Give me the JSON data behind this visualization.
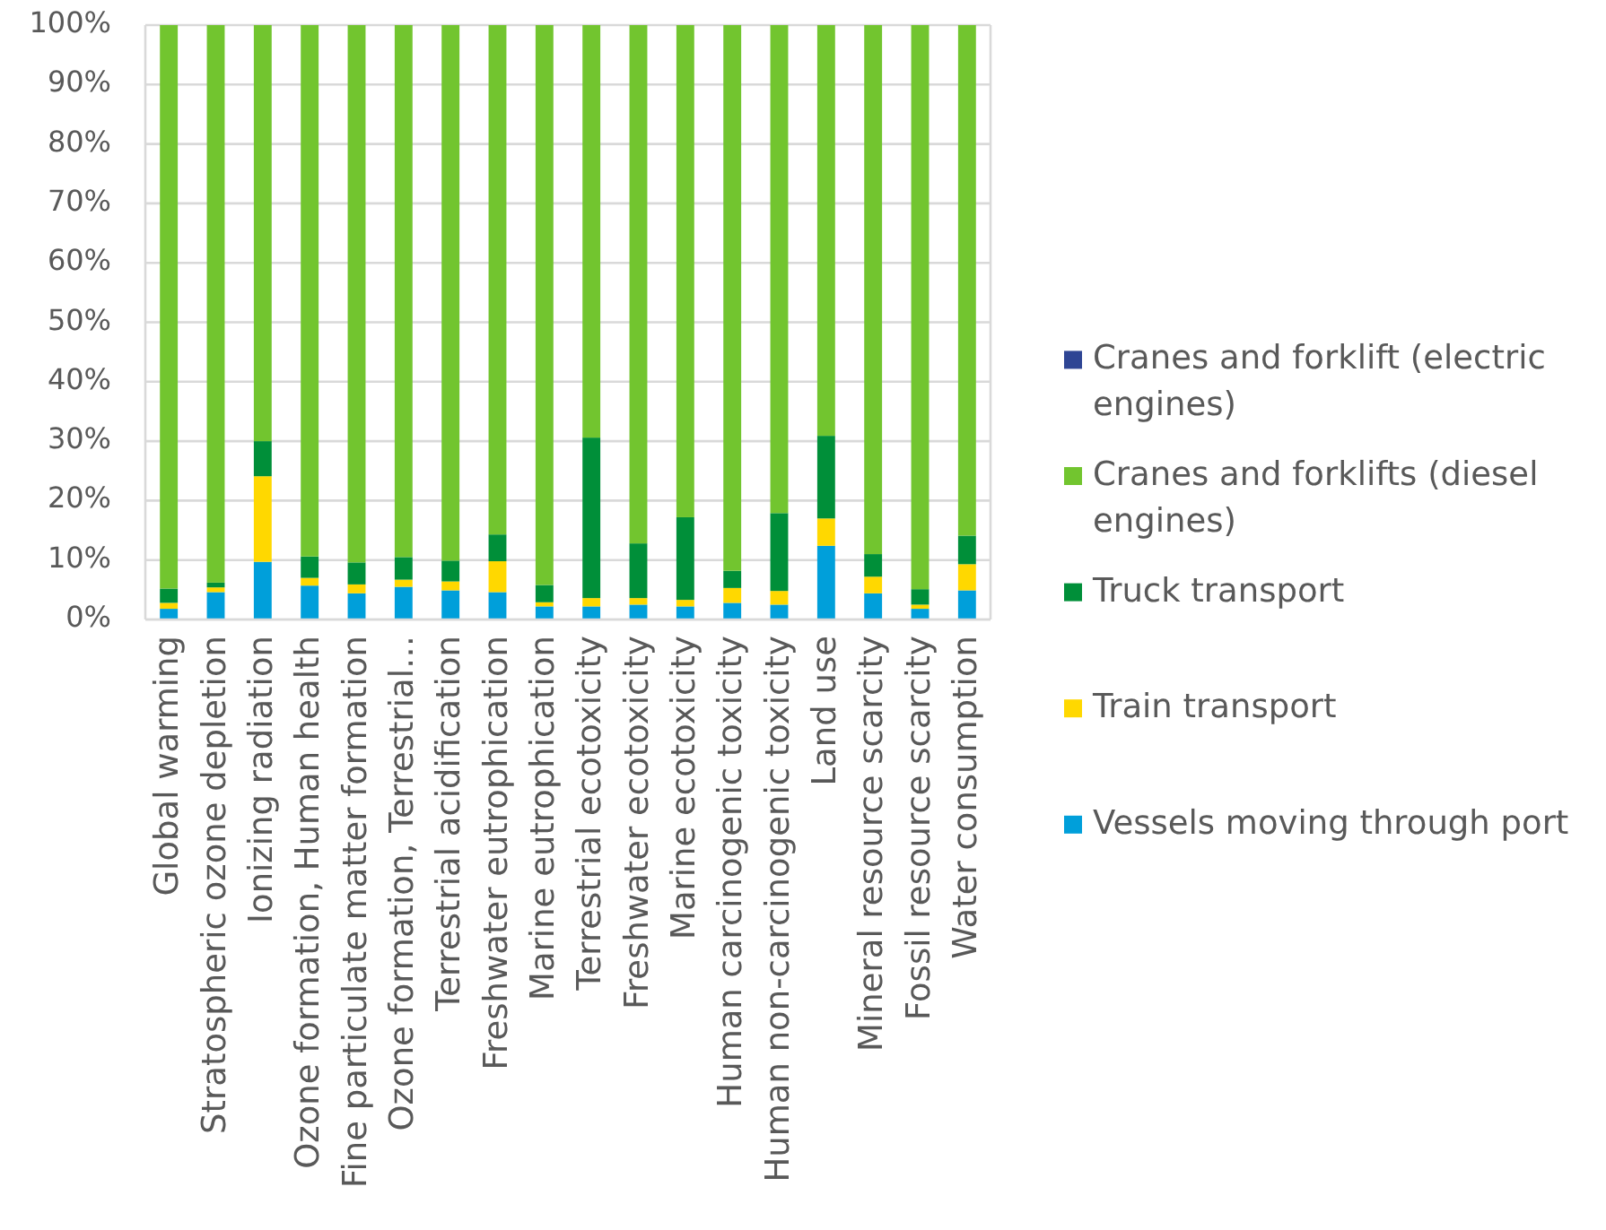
{
  "chart_data": {
    "type": "bar",
    "stacked": true,
    "categories": [
      "Global warming",
      "Stratospheric ozone depletion",
      "Ionizing radiation",
      "Ozone formation, Human health",
      "Fine particulate matter formation",
      "Ozone formation, Terrestrial…",
      "Terrestrial acidification",
      "Freshwater eutrophication",
      "Marine eutrophication",
      "Terrestrial ecotoxicity",
      "Freshwater ecotoxicity",
      "Marine ecotoxicity",
      "Human carcinogenic toxicity",
      "Human non-carcinogenic toxicity",
      "Land use",
      "Mineral resource scarcity",
      "Fossil resource scarcity",
      "Water consumption"
    ],
    "series": [
      {
        "name": "Vessels moving through port",
        "color": "#009fda",
        "values": [
          1.8,
          4.6,
          9.7,
          5.7,
          4.4,
          5.5,
          4.9,
          4.6,
          2.2,
          2.2,
          2.5,
          2.2,
          2.8,
          2.5,
          12.4,
          4.4,
          1.8,
          4.9
        ]
      },
      {
        "name": "Train transport",
        "color": "#ffd800",
        "values": [
          1.0,
          0.8,
          14.4,
          1.3,
          1.5,
          1.2,
          1.5,
          5.2,
          0.7,
          1.4,
          1.1,
          1.1,
          2.5,
          2.3,
          4.6,
          2.8,
          0.7,
          4.4
        ]
      },
      {
        "name": "Truck transport",
        "color": "#008f39",
        "values": [
          2.4,
          0.8,
          5.9,
          3.6,
          3.7,
          3.8,
          3.5,
          4.5,
          2.9,
          27.0,
          9.2,
          13.9,
          2.9,
          13.1,
          13.9,
          3.8,
          2.6,
          4.8
        ]
      },
      {
        "name": "Cranes and forklifts (diesel engines)",
        "color": "#72c52f",
        "values": [
          94.8,
          93.8,
          70.0,
          89.4,
          90.4,
          89.5,
          90.1,
          85.7,
          94.2,
          69.4,
          87.2,
          82.8,
          91.8,
          82.1,
          69.1,
          89.0,
          94.9,
          85.9
        ]
      },
      {
        "name": "Cranes and forklift (electric engines)",
        "color": "#2e4594",
        "values": [
          0,
          0,
          0,
          0,
          0,
          0,
          0,
          0,
          0,
          0,
          0,
          0,
          0,
          0,
          0,
          0,
          0,
          0
        ]
      }
    ],
    "ylim": [
      0,
      100
    ],
    "yticks": [
      {
        "value": 0,
        "label": "0%"
      },
      {
        "value": 10,
        "label": "10%"
      },
      {
        "value": 20,
        "label": "20%"
      },
      {
        "value": 30,
        "label": "30%"
      },
      {
        "value": 40,
        "label": "40%"
      },
      {
        "value": 50,
        "label": "50%"
      },
      {
        "value": 60,
        "label": "60%"
      },
      {
        "value": 70,
        "label": "70%"
      },
      {
        "value": 80,
        "label": "80%"
      },
      {
        "value": 90,
        "label": "90%"
      },
      {
        "value": 100,
        "label": "100%"
      }
    ],
    "grid": "y",
    "legend": "right"
  }
}
